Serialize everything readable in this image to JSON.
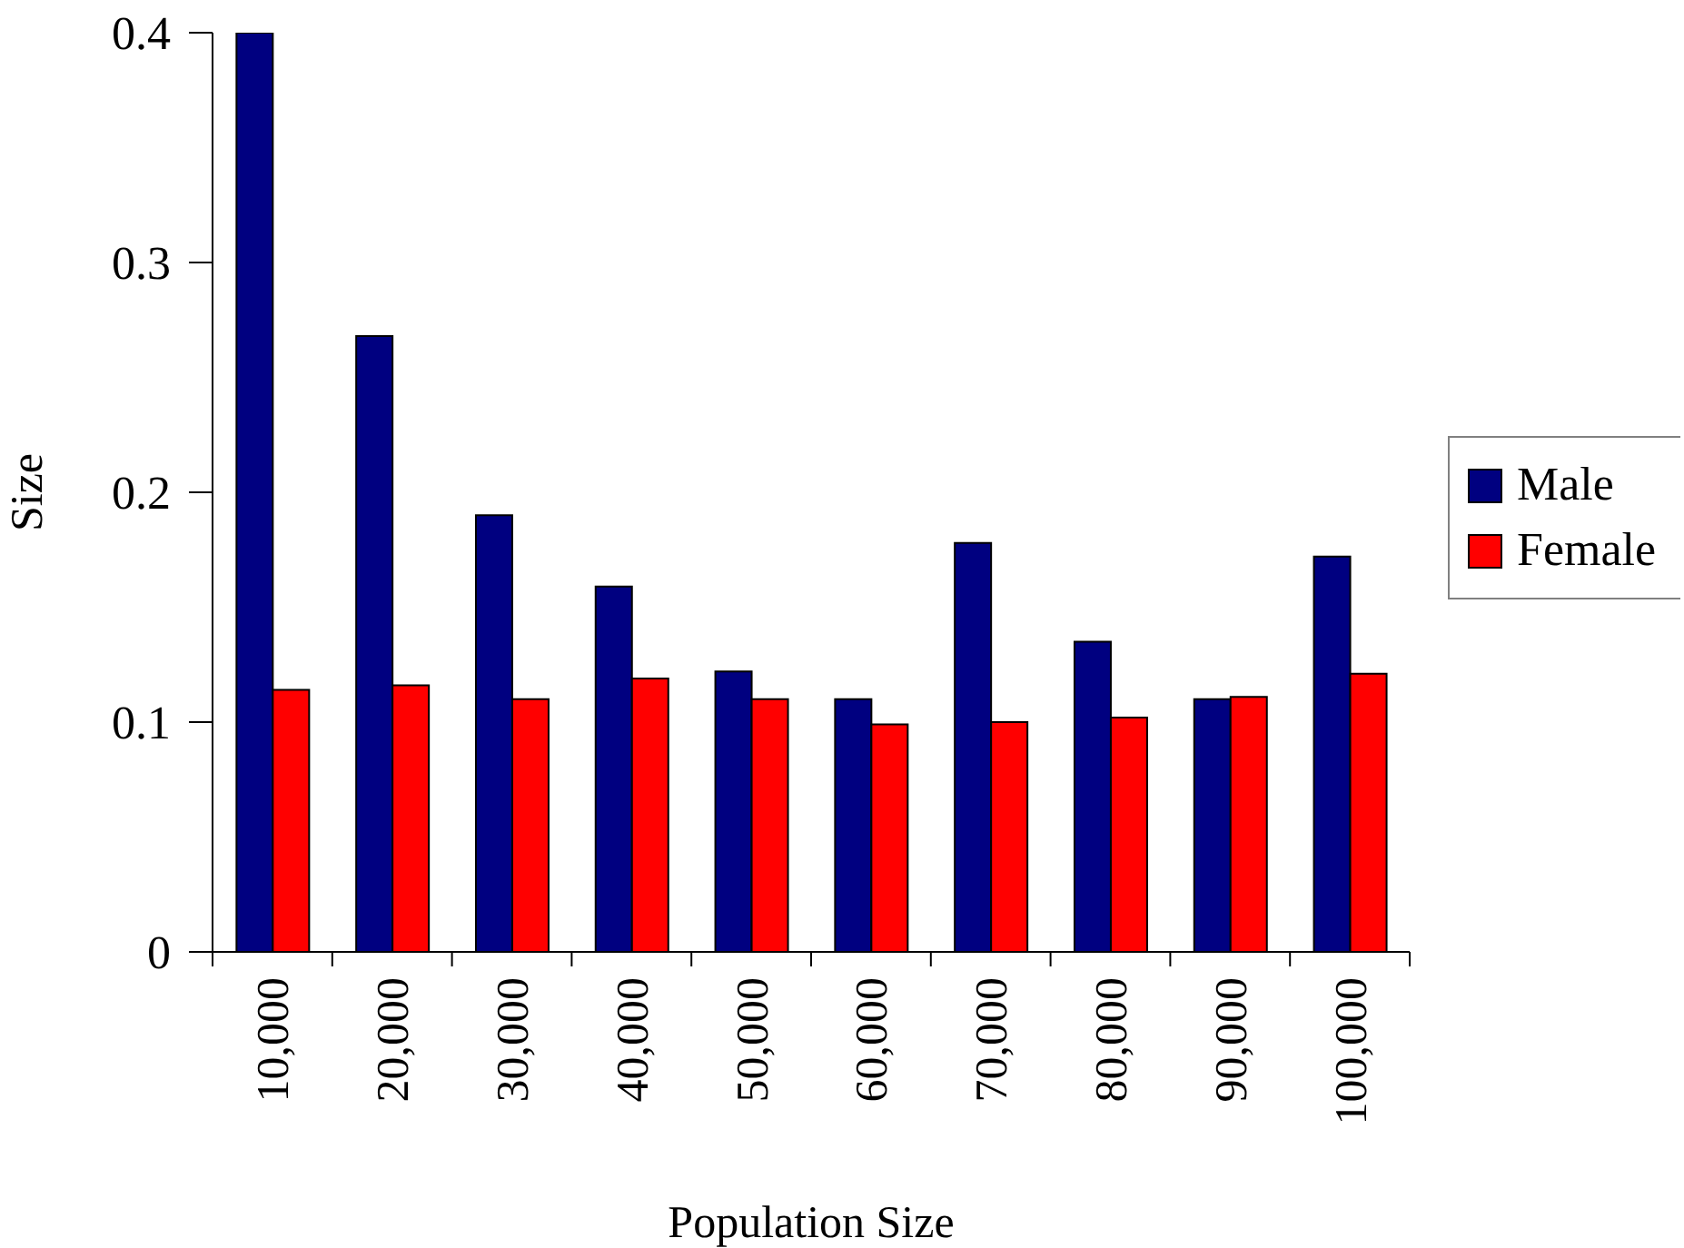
{
  "chart_data": {
    "type": "bar",
    "xlabel": "Population Size",
    "ylabel": "Size",
    "categories": [
      "10,000",
      "20,000",
      "30,000",
      "40,000",
      "50,000",
      "60,000",
      "70,000",
      "80,000",
      "90,000",
      "100,000"
    ],
    "series": [
      {
        "name": "Male",
        "color": "#000080",
        "values": [
          0.4,
          0.268,
          0.19,
          0.159,
          0.122,
          0.11,
          0.178,
          0.135,
          0.11,
          0.172
        ]
      },
      {
        "name": "Female",
        "color": "#ff0000",
        "values": [
          0.114,
          0.116,
          0.11,
          0.119,
          0.11,
          0.099,
          0.1,
          0.102,
          0.111,
          0.121
        ]
      }
    ],
    "ylim": [
      0,
      0.4
    ],
    "yticks": [
      0,
      0.1,
      0.2,
      0.3,
      0.4
    ],
    "legend": "right"
  }
}
